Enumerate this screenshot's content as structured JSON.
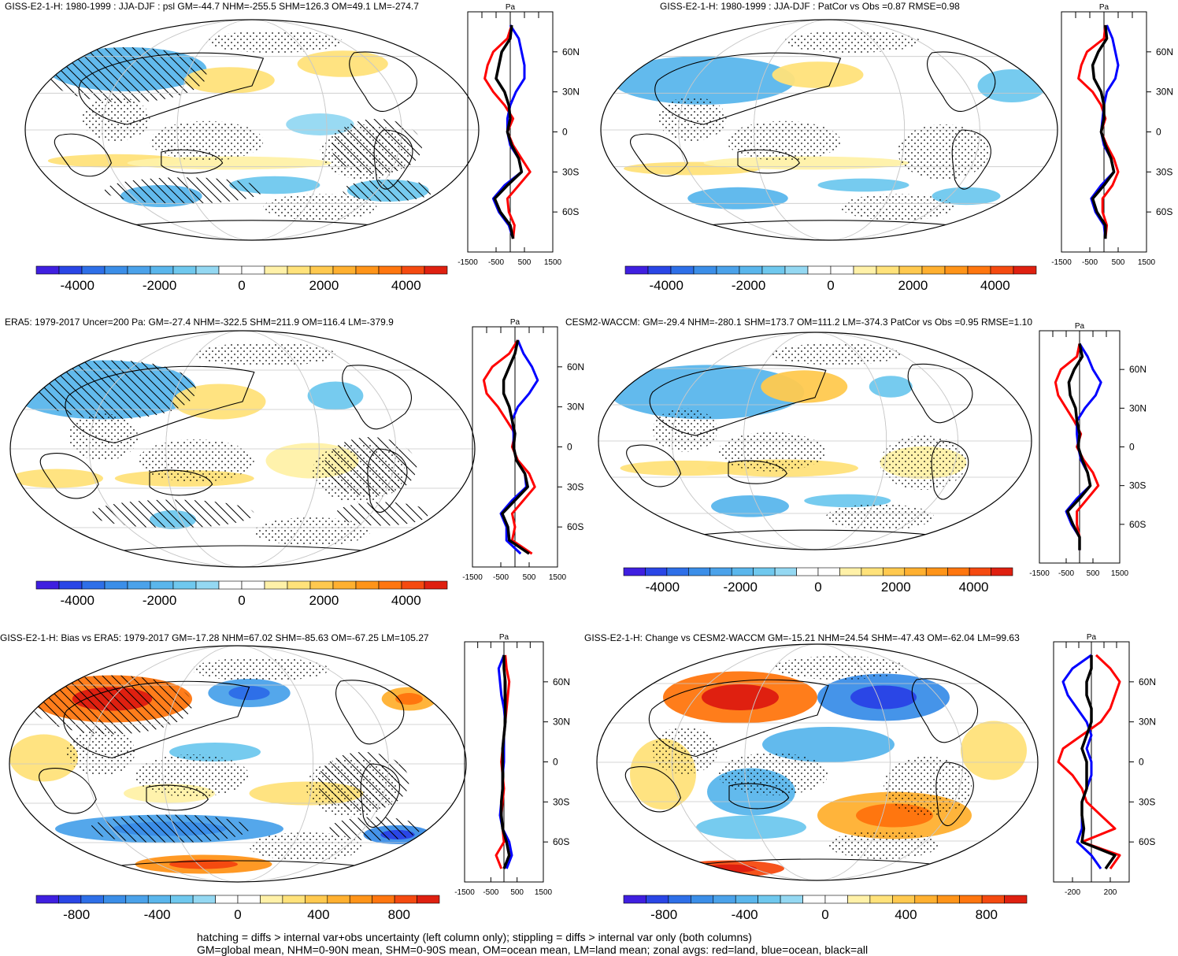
{
  "panels": [
    {
      "id": "p1",
      "title": "GISS-E2-1-H: 1980-1999 : JJA-DJF : psl GM=-44.7 NHM=-255.5 SHM=126.3 OM=49.1 LM=-274.7",
      "colorbar_ticks": [
        "-4000",
        "-2000",
        "0",
        "2000",
        "4000"
      ],
      "range": 5000,
      "hatched": true,
      "zonal_ticks": [
        "-1500",
        "-500",
        "500",
        "1500"
      ],
      "zonal_max": 1500,
      "pa_label": "Pa"
    },
    {
      "id": "p2",
      "title": "GISS-E2-1-H: 1980-1999 : JJA-DJF : PatCor vs Obs =0.87 RMSE=0.98",
      "colorbar_ticks": [
        "-4000",
        "-2000",
        "0",
        "2000",
        "4000"
      ],
      "range": 5000,
      "hatched": false,
      "zonal_ticks": [
        "-1500",
        "-500",
        "500",
        "1500"
      ],
      "zonal_max": 1500,
      "pa_label": "Pa"
    },
    {
      "id": "p3",
      "title": "ERA5: 1979-2017 Uncer=200 Pa: GM=-27.4 NHM=-322.5 SHM=211.9 OM=116.4 LM=-379.9",
      "colorbar_ticks": [
        "-4000",
        "-2000",
        "0",
        "2000",
        "4000"
      ],
      "range": 5000,
      "hatched": true,
      "zonal_ticks": [
        "-1500",
        "-500",
        "500",
        "1500"
      ],
      "zonal_max": 1500,
      "pa_label": "Pa"
    },
    {
      "id": "p4",
      "title": "CESM2-WACCM: GM=-29.4 NHM=-280.1 SHM=173.7 OM=111.2 LM=-374.3 PatCor vs Obs =0.95 RMSE=1.10",
      "colorbar_ticks": [
        "-4000",
        "-2000",
        "0",
        "2000",
        "4000"
      ],
      "range": 5000,
      "hatched": false,
      "zonal_ticks": [
        "-1500",
        "-500",
        "500",
        "1500"
      ],
      "zonal_max": 1500,
      "pa_label": "Pa"
    },
    {
      "id": "p5",
      "title": "GISS-E2-1-H: Bias vs ERA5: 1979-2017 GM=-17.28 NHM=67.02 SHM=-85.63 OM=-67.25 LM=105.27",
      "colorbar_ticks": [
        "-800",
        "-400",
        "0",
        "400",
        "800"
      ],
      "range": 1000,
      "hatched": true,
      "zonal_ticks": [
        "-1500",
        "-500",
        "500",
        "1500"
      ],
      "zonal_max": 1500,
      "pa_label": "Pa"
    },
    {
      "id": "p6",
      "title": "GISS-E2-1-H: Change vs CESM2-WACCM GM=-15.21 NHM=24.54 SHM=-47.43 OM=-62.04 LM=99.63",
      "colorbar_ticks": [
        "-800",
        "-400",
        "0",
        "400",
        "800"
      ],
      "range": 1000,
      "hatched": false,
      "zonal_ticks": [
        "-200",
        "200"
      ],
      "zonal_max": 400,
      "pa_label": "Pa"
    }
  ],
  "lat_labels": [
    "60N",
    "30N",
    "0",
    "30S",
    "60S"
  ],
  "legend_text": {
    "line1": "hatching = diffs > internal var+obs uncertainty (left column only); stippling = diffs > internal var only (both columns)",
    "line2": "GM=global mean, NHM=0-90N mean, SHM=0-90S mean, OM=ocean mean, LM=land mean; zonal avgs: red=land, blue=ocean, black=all"
  },
  "colors": {
    "land": "#ff0000",
    "ocean": "#0000ff",
    "all": "#000000"
  },
  "chart_data": [
    {
      "type": "heatmap",
      "panel": "p1",
      "variable": "psl",
      "units": "Pa",
      "colorbar_range": [
        -5000,
        5000
      ],
      "zonal_mean": {
        "lat": [
          80,
          70,
          60,
          50,
          40,
          30,
          20,
          10,
          0,
          -10,
          -20,
          -30,
          -40,
          -50,
          -60,
          -70,
          -80
        ],
        "land": [
          50,
          -100,
          -600,
          -800,
          -900,
          -600,
          -200,
          100,
          -100,
          100,
          400,
          700,
          300,
          -100,
          -50,
          150,
          100
        ],
        "ocean": [
          0,
          300,
          400,
          500,
          500,
          200,
          0,
          -100,
          -100,
          0,
          300,
          400,
          -200,
          -600,
          -400,
          -50,
          100
        ],
        "all": [
          50,
          0,
          -300,
          -400,
          -500,
          -200,
          -50,
          0,
          -100,
          50,
          300,
          400,
          -100,
          -550,
          -350,
          0,
          100
        ]
      }
    },
    {
      "type": "heatmap",
      "panel": "p2",
      "variable": "psl",
      "units": "Pa",
      "colorbar_range": [
        -5000,
        5000
      ],
      "zonal_mean": {
        "lat": [
          80,
          70,
          60,
          50,
          40,
          30,
          20,
          10,
          0,
          -10,
          -20,
          -30,
          -40,
          -50,
          -60,
          -70,
          -80
        ],
        "land": [
          50,
          0,
          -600,
          -800,
          -900,
          -400,
          -100,
          50,
          -100,
          100,
          350,
          500,
          300,
          -50,
          -50,
          100,
          50
        ],
        "ocean": [
          100,
          300,
          400,
          500,
          400,
          100,
          0,
          -50,
          -100,
          0,
          250,
          350,
          -100,
          -450,
          -300,
          0,
          50
        ],
        "all": [
          50,
          100,
          -200,
          -400,
          -350,
          -100,
          0,
          0,
          -100,
          50,
          250,
          350,
          0,
          -400,
          -250,
          50,
          50
        ]
      }
    },
    {
      "type": "heatmap",
      "panel": "p3",
      "variable": "psl",
      "units": "Pa",
      "colorbar_range": [
        -5000,
        5000
      ],
      "zonal_mean": {
        "lat": [
          80,
          70,
          60,
          50,
          40,
          30,
          20,
          10,
          0,
          -10,
          -20,
          -30,
          -40,
          -50,
          -60,
          -70,
          -80
        ],
        "land": [
          100,
          -200,
          -800,
          -1100,
          -1000,
          -600,
          -300,
          0,
          -100,
          100,
          500,
          700,
          300,
          -100,
          0,
          -100,
          600
        ],
        "ocean": [
          100,
          300,
          600,
          800,
          500,
          100,
          -100,
          -50,
          -50,
          50,
          350,
          400,
          -100,
          -500,
          -300,
          -300,
          200
        ],
        "all": [
          100,
          0,
          -200,
          -400,
          -400,
          -200,
          -100,
          0,
          -50,
          50,
          350,
          450,
          0,
          -450,
          -250,
          -200,
          500
        ]
      }
    },
    {
      "type": "heatmap",
      "panel": "p4",
      "variable": "psl",
      "units": "Pa",
      "colorbar_range": [
        -5000,
        5000
      ],
      "zonal_mean": {
        "lat": [
          80,
          70,
          60,
          50,
          40,
          30,
          20,
          10,
          0,
          -10,
          -20,
          -30,
          -40,
          -50,
          -60,
          -70,
          -80
        ],
        "land": [
          0,
          -100,
          -700,
          -900,
          -800,
          -500,
          -200,
          50,
          -100,
          150,
          500,
          700,
          300,
          -100,
          -100,
          0,
          0
        ],
        "ocean": [
          0,
          300,
          500,
          800,
          600,
          200,
          -100,
          -100,
          -50,
          50,
          300,
          400,
          -100,
          -500,
          -300,
          0,
          0
        ],
        "all": [
          0,
          100,
          -200,
          -400,
          -350,
          -150,
          -100,
          0,
          -50,
          100,
          300,
          400,
          0,
          -450,
          -250,
          0,
          0
        ]
      }
    },
    {
      "type": "heatmap",
      "panel": "p5",
      "variable": "psl bias",
      "units": "Pa",
      "colorbar_range": [
        -1000,
        1000
      ],
      "zonal_mean": {
        "lat": [
          80,
          70,
          60,
          50,
          40,
          30,
          20,
          10,
          0,
          -10,
          -20,
          -30,
          -40,
          -50,
          -60,
          -70,
          -80
        ],
        "land": [
          50,
          100,
          200,
          150,
          100,
          50,
          0,
          -50,
          -100,
          -50,
          0,
          -50,
          -100,
          -50,
          0,
          -300,
          -100
        ],
        "ocean": [
          0,
          -200,
          -150,
          -100,
          0,
          50,
          0,
          0,
          0,
          -50,
          -50,
          -100,
          -150,
          -50,
          200,
          300,
          100
        ],
        "all": [
          0,
          0,
          50,
          50,
          50,
          50,
          0,
          -50,
          -50,
          -50,
          -50,
          -100,
          -100,
          -50,
          100,
          200,
          0
        ]
      }
    },
    {
      "type": "heatmap",
      "panel": "p6",
      "variable": "psl change",
      "units": "Pa",
      "colorbar_range": [
        -1000,
        1000
      ],
      "zonal_mean": {
        "lat": [
          80,
          70,
          60,
          50,
          40,
          30,
          20,
          10,
          0,
          -10,
          -20,
          -30,
          -40,
          -50,
          -60,
          -70,
          -80
        ],
        "land": [
          50,
          200,
          300,
          250,
          200,
          100,
          -100,
          -300,
          -350,
          -200,
          -100,
          -50,
          100,
          250,
          -100,
          300,
          200
        ],
        "ocean": [
          0,
          -200,
          -300,
          -250,
          -150,
          -50,
          0,
          -50,
          0,
          0,
          -50,
          -100,
          -100,
          -100,
          -150,
          0,
          100
        ],
        "all": [
          0,
          0,
          -50,
          -50,
          0,
          0,
          -50,
          -100,
          -50,
          -50,
          -50,
          -100,
          -100,
          -80,
          -100,
          250,
          150
        ]
      }
    }
  ]
}
